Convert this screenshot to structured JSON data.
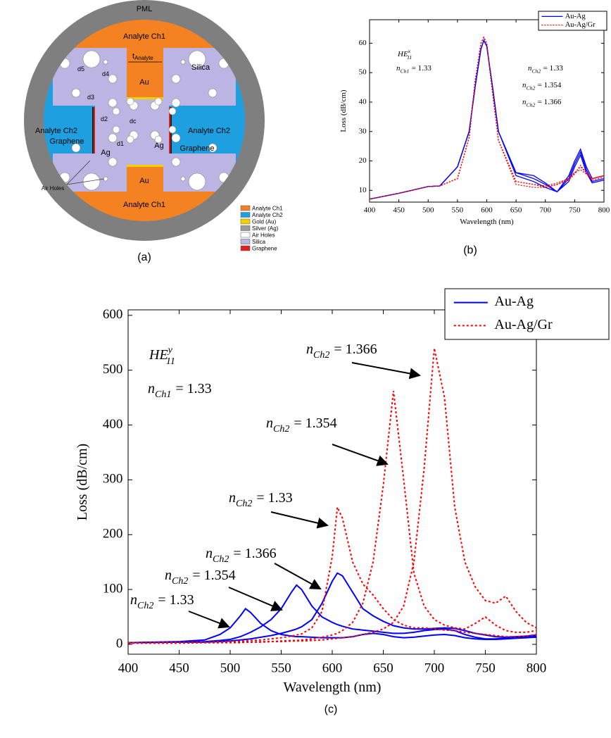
{
  "diagram": {
    "labels": {
      "pml": "PML",
      "ch1_top": "Analyte Ch1",
      "ch1_bottom": "Analyte Ch1",
      "ch2_left": "Analyte Ch2",
      "ch2_right": "Analyte Ch2",
      "silica": "Silica",
      "au_top": "Au",
      "au_bottom": "Au",
      "ag_left": "Ag",
      "ag_right": "Ag",
      "graphene_left": "Graphene",
      "graphene_right": "Graphene",
      "air_holes": "Air Holes",
      "d5": "d5",
      "d4": "d4",
      "d3": "d3",
      "d2": "d2",
      "dc": "dc",
      "d1": "d1"
    },
    "t_analyte": {
      "base": "t",
      "sub": "Analyte"
    },
    "legend": [
      {
        "label": "Analyte Ch1",
        "color": "#f58220"
      },
      {
        "label": "Analyte Ch2",
        "color": "#1e9fe0"
      },
      {
        "label": "Gold (Au)",
        "color": "#f5d000"
      },
      {
        "label": "Silver (Ag)",
        "color": "#9a9a9a"
      },
      {
        "label": "Air Holes",
        "color": "#ffffff"
      },
      {
        "label": "Silica",
        "color": "#bcb4e2"
      },
      {
        "label": "Graphene",
        "color": "#e02020"
      }
    ]
  },
  "captions": [
    "(a)",
    "(b)",
    "(c)"
  ],
  "chart_data": [
    {
      "type": "line",
      "x_label": "Wavelength (nm)",
      "y_label": "Loss (dB/cm)",
      "legend": "upper right",
      "x": [
        400,
        450,
        500,
        520,
        550,
        570,
        580,
        590,
        595,
        600,
        610,
        620,
        650,
        680,
        700,
        720,
        740,
        750,
        760,
        770,
        780,
        800
      ],
      "xlim": [
        400,
        800
      ],
      "ylim": [
        6,
        68
      ],
      "xticks": [
        400,
        450,
        500,
        550,
        600,
        650,
        700,
        750,
        800
      ],
      "yticks": [
        10,
        20,
        30,
        40,
        50,
        60
      ],
      "series": [
        {
          "name": "Au-Ag",
          "color": "#0000ff",
          "dash": false,
          "values": [
            [
              7,
              9,
              11.3,
              11.5,
              18,
              30,
              45,
              58,
              61,
              59,
              45,
              30,
              15,
              13,
              11,
              9.5,
              15,
              20,
              24,
              18,
              14,
              15
            ],
            [
              7,
              9,
              11.3,
              11.5,
              18,
              30,
              45,
              58,
              61,
              59,
              45,
              30,
              16,
              14,
              12,
              9.5,
              14,
              19,
              23,
              17,
              13,
              14
            ],
            [
              7,
              9,
              11.3,
              11.5,
              18,
              30,
              45,
              58,
              61,
              59,
              45,
              30,
              16,
              15,
              12.5,
              9.5,
              13,
              18,
              22,
              16,
              12.5,
              13.5
            ]
          ]
        },
        {
          "name": "Au-Ag/Gr",
          "color": "#ff0000",
          "dash": true,
          "values": [
            [
              7,
              9,
              11.3,
              11.5,
              14,
              28,
              47,
              60,
              62,
              60,
              43,
              27,
              13,
              12,
              11,
              12,
              14,
              16,
              18,
              16,
              14,
              15
            ],
            [
              7,
              9,
              11.3,
              11.5,
              14,
              28,
              47,
              60,
              62,
              60,
              43,
              27,
              13,
              12,
              11.5,
              12.5,
              14,
              16,
              17,
              15.5,
              14,
              15
            ],
            [
              7,
              9,
              11.3,
              11.5,
              14,
              28,
              47,
              60,
              62,
              60,
              43,
              27,
              12,
              11,
              11,
              12,
              13.5,
              15.5,
              18.5,
              16,
              13.5,
              14.5
            ]
          ]
        }
      ],
      "annotations": [
        {
          "base": "HE",
          "sup": "x",
          "sub": "11"
        },
        {
          "base": "n",
          "sub": "Ch1",
          "rest": "= 1.33"
        },
        {
          "base": "n",
          "sub": "Ch2",
          "rest": "= 1.33"
        },
        {
          "base": "n",
          "sub": "Ch2",
          "rest": "= 1.354"
        },
        {
          "base": "n",
          "sub": "Ch2",
          "rest": "= 1.366"
        }
      ]
    },
    {
      "type": "line",
      "x_label": "Wavelength (nm)",
      "y_label": "Loss (dB/cm)",
      "legend": "upper right",
      "x": [
        400,
        450,
        475,
        490,
        500,
        510,
        515,
        520,
        530,
        540,
        550,
        560,
        565,
        570,
        580,
        590,
        600,
        605,
        610,
        620,
        630,
        640,
        650,
        660,
        670,
        680,
        690,
        700,
        710,
        720,
        730,
        740,
        750,
        760,
        770,
        780,
        790,
        800
      ],
      "xlim": [
        400,
        800
      ],
      "ylim": [
        -18,
        610
      ],
      "xticks": [
        400,
        450,
        500,
        550,
        600,
        650,
        700,
        750,
        800
      ],
      "yticks": [
        0,
        100,
        200,
        300,
        400,
        500,
        600
      ],
      "series": [
        {
          "name": "Au-Ag",
          "color": "#0000ff",
          "dash": false,
          "values": [
            [
              3,
              5,
              8,
              18,
              30,
              52,
              65,
              58,
              38,
              25,
              18,
              15,
              14,
              14,
              13,
              12,
              12,
              12,
              12,
              14,
              18,
              20,
              18,
              14,
              12,
              13,
              15,
              17,
              18,
              16,
              12,
              10,
              9,
              9,
              10,
              11,
              12,
              13
            ],
            [
              3,
              4,
              5,
              7,
              9,
              14,
              18,
              22,
              32,
              45,
              65,
              95,
              108,
              100,
              70,
              50,
              40,
              36,
              33,
              28,
              26,
              24,
              22,
              20,
              20,
              22,
              25,
              27,
              28,
              25,
              18,
              13,
              10,
              10,
              11,
              12,
              14,
              15
            ],
            [
              3,
              4,
              4,
              5,
              6,
              8,
              9,
              10,
              13,
              16,
              20,
              25,
              28,
              32,
              45,
              75,
              115,
              130,
              125,
              95,
              65,
              52,
              42,
              34,
              30,
              28,
              28,
              29,
              30,
              29,
              25,
              20,
              17,
              14,
              13,
              14,
              15,
              17
            ]
          ]
        },
        {
          "name": "Au-Ag/Gr",
          "color": "#ff0000",
          "dash": true,
          "values": [
            [
              3,
              4,
              4,
              5,
              5,
              6,
              6,
              7,
              8,
              10,
              12,
              15,
              17,
              19,
              30,
              60,
              160,
              250,
              230,
              150,
              110,
              90,
              65,
              45,
              35,
              30,
              30,
              28,
              26,
              25,
              22,
              20,
              18,
              16,
              14,
              14,
              15,
              18
            ],
            [
              2,
              3,
              3,
              3,
              4,
              4,
              4,
              4,
              5,
              5,
              6,
              7,
              7,
              8,
              10,
              13,
              17,
              20,
              25,
              40,
              75,
              150,
              290,
              462,
              300,
              130,
              70,
              45,
              35,
              30,
              28,
              38,
              50,
              35,
              25,
              22,
              22,
              25
            ],
            [
              2,
              2,
              3,
              3,
              3,
              3,
              4,
              4,
              4,
              5,
              5,
              6,
              6,
              6,
              7,
              8,
              10,
              11,
              12,
              14,
              18,
              22,
              28,
              40,
              70,
              150,
              320,
              540,
              450,
              250,
              150,
              105,
              80,
              75,
              88,
              60,
              40,
              30
            ]
          ]
        }
      ],
      "annotations": [
        {
          "base": "HE",
          "sup": "y",
          "sub": "11"
        },
        {
          "base": "n",
          "sub": "Ch1",
          "rest": "= 1.33"
        },
        {
          "base": "n",
          "sub": "Ch2",
          "rest": "= 1.366"
        },
        {
          "base": "n",
          "sub": "Ch2",
          "rest": "= 1.354"
        },
        {
          "base": "n",
          "sub": "Ch2",
          "rest": "= 1.33"
        },
        {
          "base": "n",
          "sub": "Ch2",
          "rest": "= 1.366"
        },
        {
          "base": "n",
          "sub": "Ch2",
          "rest": "= 1.354"
        },
        {
          "base": "n",
          "sub": "Ch2",
          "rest": "= 1.33"
        }
      ]
    }
  ]
}
